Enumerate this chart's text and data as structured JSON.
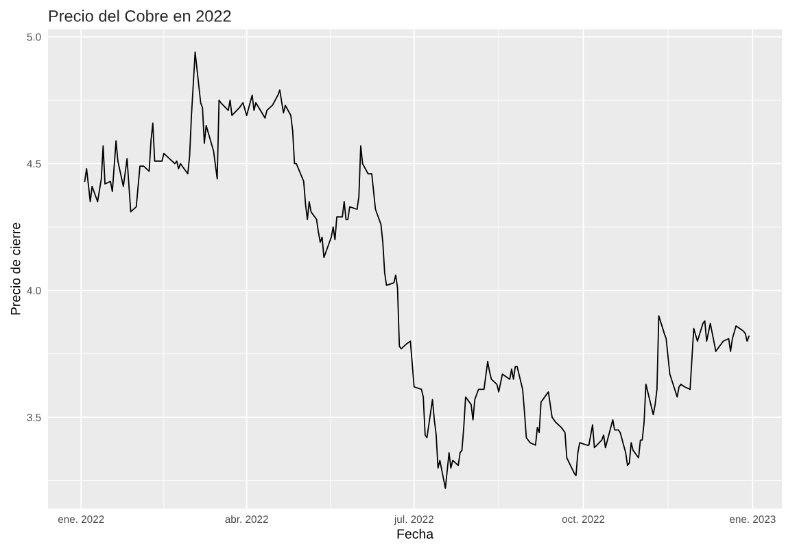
{
  "chart_data": {
    "type": "line",
    "title": "Precio del Cobre en 2022",
    "xlabel": "Fecha",
    "ylabel": "Precio de cierre",
    "grid": true,
    "legend": false,
    "marker": "none",
    "line_style": "solid",
    "xlim": [
      "2021-12-14",
      "2023-01-17"
    ],
    "ylim": [
      3.14,
      5.03
    ],
    "xticks": [
      {
        "value": "2022-01-01",
        "label": "ene. 2022"
      },
      {
        "value": "2022-04-01",
        "label": "abr. 2022"
      },
      {
        "value": "2022-07-01",
        "label": "jul. 2022"
      },
      {
        "value": "2022-10-01",
        "label": "oct. 2022"
      },
      {
        "value": "2023-01-01",
        "label": "ene. 2023"
      }
    ],
    "yticks": [
      {
        "value": 3.5,
        "label": "3.5"
      },
      {
        "value": 4.0,
        "label": "4.0"
      },
      {
        "value": 4.5,
        "label": "4.5"
      },
      {
        "value": 5.0,
        "label": "5.0"
      }
    ],
    "series": [
      {
        "color": "#000000",
        "x": [
          "2022-01-03",
          "2022-01-04",
          "2022-01-06",
          "2022-01-07",
          "2022-01-10",
          "2022-01-12",
          "2022-01-13",
          "2022-01-14",
          "2022-01-17",
          "2022-01-18",
          "2022-01-20",
          "2022-01-21",
          "2022-01-24",
          "2022-01-26",
          "2022-01-28",
          "2022-01-31",
          "2022-02-02",
          "2022-02-04",
          "2022-02-07",
          "2022-02-08",
          "2022-02-09",
          "2022-02-10",
          "2022-02-14",
          "2022-02-15",
          "2022-02-18",
          "2022-02-21",
          "2022-02-22",
          "2022-02-23",
          "2022-02-24",
          "2022-02-28",
          "2022-03-01",
          "2022-03-02",
          "2022-03-04",
          "2022-03-07",
          "2022-03-08",
          "2022-03-09",
          "2022-03-10",
          "2022-03-14",
          "2022-03-16",
          "2022-03-17",
          "2022-03-18",
          "2022-03-22",
          "2022-03-23",
          "2022-03-24",
          "2022-03-28",
          "2022-03-30",
          "2022-04-01",
          "2022-04-04",
          "2022-04-05",
          "2022-04-06",
          "2022-04-11",
          "2022-04-12",
          "2022-04-15",
          "2022-04-18",
          "2022-04-19",
          "2022-04-21",
          "2022-04-22",
          "2022-04-25",
          "2022-04-26",
          "2022-04-27",
          "2022-04-28",
          "2022-05-02",
          "2022-05-03",
          "2022-05-04",
          "2022-05-05",
          "2022-05-06",
          "2022-05-09",
          "2022-05-10",
          "2022-05-11",
          "2022-05-12",
          "2022-05-13",
          "2022-05-16",
          "2022-05-17",
          "2022-05-18",
          "2022-05-19",
          "2022-05-20",
          "2022-05-23",
          "2022-05-24",
          "2022-05-25",
          "2022-05-26",
          "2022-05-27",
          "2022-05-31",
          "2022-06-01",
          "2022-06-02",
          "2022-06-03",
          "2022-06-06",
          "2022-06-08",
          "2022-06-10",
          "2022-06-13",
          "2022-06-14",
          "2022-06-15",
          "2022-06-16",
          "2022-06-20",
          "2022-06-21",
          "2022-06-22",
          "2022-06-23",
          "2022-06-24",
          "2022-06-27",
          "2022-06-29",
          "2022-07-01",
          "2022-07-05",
          "2022-07-06",
          "2022-07-07",
          "2022-07-08",
          "2022-07-11",
          "2022-07-12",
          "2022-07-13",
          "2022-07-14",
          "2022-07-15",
          "2022-07-18",
          "2022-07-19",
          "2022-07-20",
          "2022-07-21",
          "2022-07-22",
          "2022-07-25",
          "2022-07-26",
          "2022-07-27",
          "2022-07-28",
          "2022-07-29",
          "2022-08-01",
          "2022-08-02",
          "2022-08-03",
          "2022-08-05",
          "2022-08-08",
          "2022-08-10",
          "2022-08-11",
          "2022-08-12",
          "2022-08-15",
          "2022-08-16",
          "2022-08-18",
          "2022-08-22",
          "2022-08-23",
          "2022-08-24",
          "2022-08-25",
          "2022-08-26",
          "2022-08-29",
          "2022-08-30",
          "2022-08-31",
          "2022-09-02",
          "2022-09-05",
          "2022-09-06",
          "2022-09-07",
          "2022-09-08",
          "2022-09-12",
          "2022-09-13",
          "2022-09-14",
          "2022-09-16",
          "2022-09-19",
          "2022-09-21",
          "2022-09-22",
          "2022-09-26",
          "2022-09-27",
          "2022-09-28",
          "2022-09-29",
          "2022-10-03",
          "2022-10-04",
          "2022-10-05",
          "2022-10-06",
          "2022-10-07",
          "2022-10-11",
          "2022-10-12",
          "2022-10-13",
          "2022-10-17",
          "2022-10-18",
          "2022-10-20",
          "2022-10-21",
          "2022-10-24",
          "2022-10-25",
          "2022-10-26",
          "2022-10-27",
          "2022-10-28",
          "2022-10-31",
          "2022-11-01",
          "2022-11-02",
          "2022-11-03",
          "2022-11-04",
          "2022-11-07",
          "2022-11-08",
          "2022-11-09",
          "2022-11-10",
          "2022-11-11",
          "2022-11-14",
          "2022-11-15",
          "2022-11-17",
          "2022-11-21",
          "2022-11-22",
          "2022-11-23",
          "2022-11-25",
          "2022-11-28",
          "2022-11-30",
          "2022-12-02",
          "2022-12-05",
          "2022-12-06",
          "2022-12-07",
          "2022-12-09",
          "2022-12-12",
          "2022-12-14",
          "2022-12-16",
          "2022-12-19",
          "2022-12-20",
          "2022-12-21",
          "2022-12-23",
          "2022-12-27",
          "2022-12-28",
          "2022-12-29",
          "2022-12-30"
        ],
        "values": [
          4.43,
          4.48,
          4.35,
          4.41,
          4.35,
          4.44,
          4.57,
          4.42,
          4.43,
          4.39,
          4.59,
          4.51,
          4.41,
          4.52,
          4.31,
          4.33,
          4.49,
          4.49,
          4.47,
          4.59,
          4.66,
          4.51,
          4.51,
          4.54,
          4.52,
          4.5,
          4.51,
          4.48,
          4.5,
          4.46,
          4.53,
          4.69,
          4.94,
          4.74,
          4.72,
          4.58,
          4.65,
          4.55,
          4.44,
          4.75,
          4.74,
          4.71,
          4.75,
          4.69,
          4.72,
          4.74,
          4.69,
          4.77,
          4.71,
          4.74,
          4.68,
          4.71,
          4.73,
          4.77,
          4.79,
          4.7,
          4.73,
          4.69,
          4.63,
          4.5,
          4.5,
          4.43,
          4.34,
          4.28,
          4.35,
          4.31,
          4.28,
          4.23,
          4.19,
          4.21,
          4.13,
          4.19,
          4.21,
          4.25,
          4.2,
          4.29,
          4.29,
          4.35,
          4.28,
          4.28,
          4.33,
          4.32,
          4.37,
          4.57,
          4.5,
          4.46,
          4.46,
          4.32,
          4.26,
          4.19,
          4.07,
          4.02,
          4.03,
          4.06,
          4.01,
          3.78,
          3.77,
          3.79,
          3.8,
          3.62,
          3.61,
          3.58,
          3.43,
          3.42,
          3.57,
          3.49,
          3.43,
          3.3,
          3.33,
          3.22,
          3.29,
          3.36,
          3.3,
          3.33,
          3.31,
          3.36,
          3.37,
          3.46,
          3.58,
          3.55,
          3.49,
          3.57,
          3.61,
          3.61,
          3.72,
          3.68,
          3.65,
          3.63,
          3.6,
          3.67,
          3.65,
          3.69,
          3.65,
          3.7,
          3.7,
          3.61,
          3.52,
          3.42,
          3.4,
          3.39,
          3.46,
          3.44,
          3.56,
          3.6,
          3.55,
          3.5,
          3.48,
          3.46,
          3.44,
          3.34,
          3.28,
          3.27,
          3.36,
          3.4,
          3.39,
          3.39,
          3.43,
          3.47,
          3.38,
          3.41,
          3.43,
          3.38,
          3.49,
          3.45,
          3.45,
          3.44,
          3.36,
          3.31,
          3.32,
          3.4,
          3.37,
          3.34,
          3.41,
          3.41,
          3.48,
          3.63,
          3.54,
          3.51,
          3.55,
          3.61,
          3.9,
          3.83,
          3.81,
          3.67,
          3.58,
          3.62,
          3.63,
          3.62,
          3.61,
          3.85,
          3.8,
          3.87,
          3.88,
          3.8,
          3.87,
          3.76,
          3.78,
          3.8,
          3.81,
          3.76,
          3.81,
          3.86,
          3.84,
          3.83,
          3.8,
          3.82
        ]
      }
    ]
  }
}
